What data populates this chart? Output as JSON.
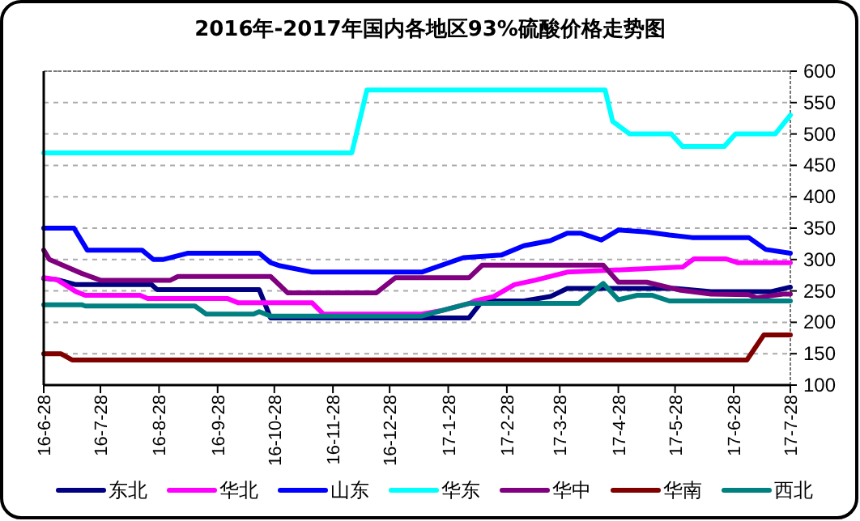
{
  "chart_data": {
    "type": "line",
    "title": "2016年-2017年国内各地区93%硫酸价格走势图",
    "xlim": [
      "2016-06-28",
      "2017-07-28"
    ],
    "xticks": [
      {
        "value": "2016-06-28",
        "label": "16-6-28"
      },
      {
        "value": "2016-07-28",
        "label": "16-7-28"
      },
      {
        "value": "2016-08-28",
        "label": "16-8-28"
      },
      {
        "value": "2016-09-28",
        "label": "16-9-28"
      },
      {
        "value": "2016-10-28",
        "label": "16-10-28"
      },
      {
        "value": "2016-11-28",
        "label": "16-11-28"
      },
      {
        "value": "2016-12-28",
        "label": "16-12-28"
      },
      {
        "value": "2017-01-28",
        "label": "17-1-28"
      },
      {
        "value": "2017-02-28",
        "label": "17-2-28"
      },
      {
        "value": "2017-03-28",
        "label": "17-3-28"
      },
      {
        "value": "2017-04-28",
        "label": "17-4-28"
      },
      {
        "value": "2017-05-28",
        "label": "17-5-28"
      },
      {
        "value": "2017-06-28",
        "label": "17-6-28"
      },
      {
        "value": "2017-07-28",
        "label": "17-7-28"
      }
    ],
    "ylim": [
      100,
      600
    ],
    "yticks": [
      100,
      150,
      200,
      250,
      300,
      350,
      400,
      450,
      500,
      550,
      600
    ],
    "grid": "y",
    "legend": "bottom",
    "marker": "none",
    "line_style": "solid",
    "series": [
      {
        "name": "东北",
        "color": "#000080",
        "x": [
          "2016-06-28",
          "2016-07-05",
          "2016-07-15",
          "2016-08-24",
          "2016-08-27",
          "2016-10-20",
          "2016-10-26",
          "2017-02-08",
          "2017-02-15",
          "2017-03-09",
          "2017-03-23",
          "2017-04-01",
          "2017-05-28",
          "2017-06-16",
          "2017-07-18",
          "2017-07-28"
        ],
        "values": [
          270,
          268,
          260,
          260,
          252,
          252,
          207,
          207,
          234,
          234,
          241,
          254,
          254,
          249,
          249,
          256
        ]
      },
      {
        "name": "华北",
        "color": "#ff00ff",
        "x": [
          "2016-06-28",
          "2016-07-05",
          "2016-07-15",
          "2016-07-20",
          "2016-08-18",
          "2016-08-22",
          "2016-10-03",
          "2016-10-09",
          "2016-11-17",
          "2016-11-23",
          "2017-01-14",
          "2017-01-25",
          "2017-02-08",
          "2017-02-11",
          "2017-02-21",
          "2017-03-04",
          "2017-03-15",
          "2017-04-01",
          "2017-06-01",
          "2017-06-07",
          "2017-06-24",
          "2017-06-30",
          "2017-07-28"
        ],
        "values": [
          271,
          268,
          249,
          243,
          243,
          238,
          238,
          231,
          231,
          213,
          213,
          219,
          230,
          234,
          241,
          260,
          267,
          280,
          288,
          301,
          301,
          295,
          295
        ]
      },
      {
        "name": "山东",
        "color": "#0000ff",
        "x": [
          "2016-06-28",
          "2016-07-14",
          "2016-07-21",
          "2016-08-19",
          "2016-08-25",
          "2016-08-30",
          "2016-09-12",
          "2016-10-20",
          "2016-10-26",
          "2016-10-31",
          "2016-11-17",
          "2017-01-14",
          "2017-02-05",
          "2017-02-25",
          "2017-03-09",
          "2017-03-23",
          "2017-04-01",
          "2017-04-08",
          "2017-04-19",
          "2017-04-28",
          "2017-05-13",
          "2017-05-25",
          "2017-06-06",
          "2017-07-06",
          "2017-07-15",
          "2017-07-28"
        ],
        "values": [
          350,
          350,
          315,
          315,
          300,
          300,
          310,
          310,
          295,
          290,
          280,
          280,
          303,
          307,
          322,
          330,
          342,
          342,
          331,
          347,
          344,
          339,
          335,
          335,
          316,
          310
        ]
      },
      {
        "name": "华东",
        "color": "#00ffff",
        "x": [
          "2016-06-28",
          "2016-12-08",
          "2016-12-16",
          "2017-04-21",
          "2017-04-25",
          "2017-05-04",
          "2017-05-26",
          "2017-06-01",
          "2017-06-23",
          "2017-06-29",
          "2017-07-20",
          "2017-07-28"
        ],
        "values": [
          470,
          470,
          570,
          570,
          520,
          500,
          500,
          480,
          480,
          500,
          500,
          530
        ]
      },
      {
        "name": "华中",
        "color": "#800080",
        "x": [
          "2016-06-28",
          "2016-07-01",
          "2016-07-18",
          "2016-07-28",
          "2016-09-03",
          "2016-09-07",
          "2016-10-26",
          "2016-11-04",
          "2016-12-21",
          "2016-12-31",
          "2017-02-08",
          "2017-02-15",
          "2017-04-20",
          "2017-04-28",
          "2017-05-13",
          "2017-05-31",
          "2017-06-16",
          "2017-07-06",
          "2017-07-10",
          "2017-07-24",
          "2017-07-28"
        ],
        "values": [
          315,
          300,
          278,
          267,
          267,
          273,
          273,
          247,
          247,
          271,
          271,
          291,
          291,
          264,
          264,
          251,
          245,
          244,
          239,
          245,
          245
        ]
      },
      {
        "name": "华南",
        "color": "#800000",
        "x": [
          "2016-06-28",
          "2016-07-07",
          "2016-07-13",
          "2017-07-05",
          "2017-07-14",
          "2017-07-28"
        ],
        "values": [
          150,
          150,
          140,
          140,
          180,
          180
        ]
      },
      {
        "name": "西北",
        "color": "#008080",
        "x": [
          "2016-06-28",
          "2016-07-18",
          "2016-07-20",
          "2016-09-16",
          "2016-09-22",
          "2016-10-17",
          "2016-10-20",
          "2016-10-26",
          "2017-01-14",
          "2017-01-25",
          "2017-02-08",
          "2017-04-07",
          "2017-04-20",
          "2017-04-28",
          "2017-05-08",
          "2017-05-16",
          "2017-05-25",
          "2017-07-28"
        ],
        "values": [
          228,
          228,
          226,
          226,
          213,
          213,
          217,
          210,
          210,
          219,
          230,
          230,
          262,
          236,
          243,
          243,
          234,
          234
        ]
      }
    ]
  }
}
